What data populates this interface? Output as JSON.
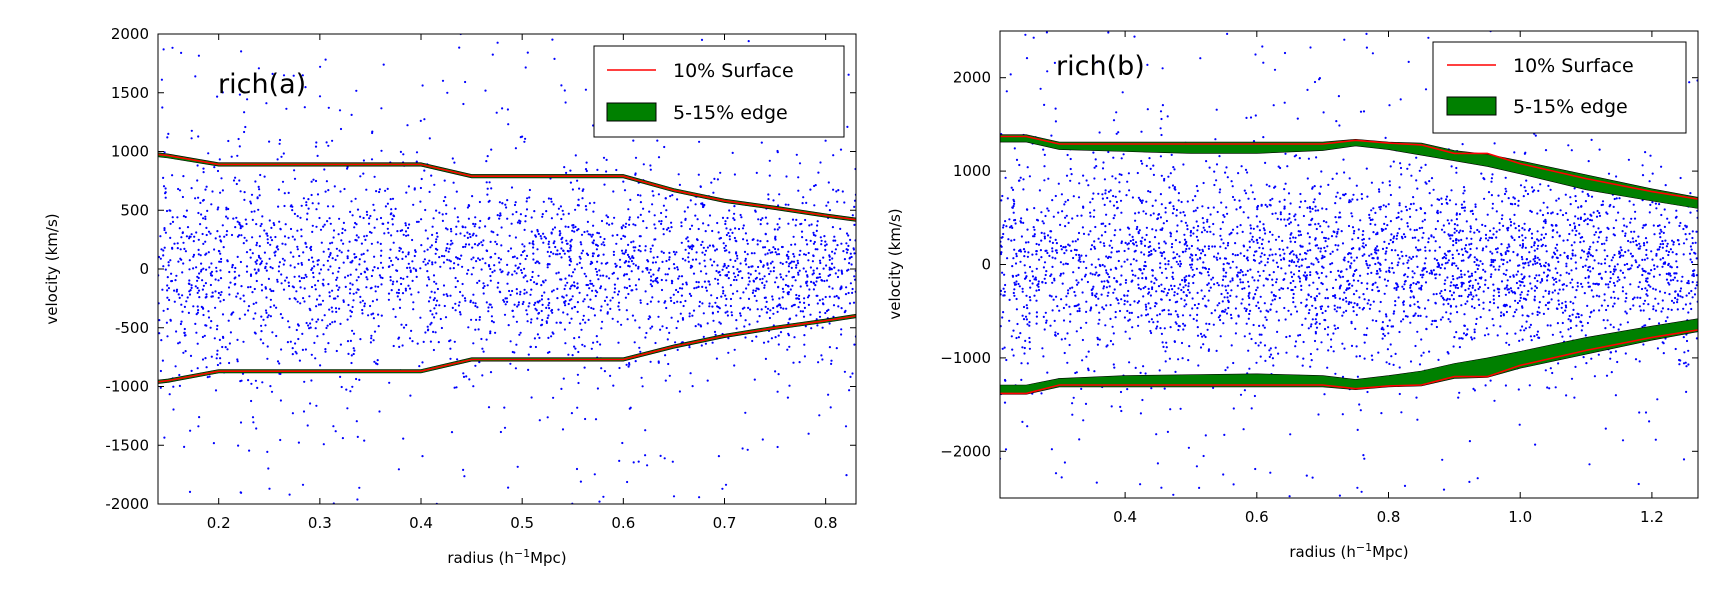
{
  "chart_data": [
    {
      "type": "scatter",
      "panel_label": "rich(a)",
      "xlabel_main": "radius (h",
      "xlabel_sup": "−1",
      "xlabel_tail": "Mpc)",
      "ylabel": "velocity (km/s)",
      "xlim": [
        0.14,
        0.83
      ],
      "ylim": [
        -2000,
        2000
      ],
      "xticks": [
        0.2,
        0.3,
        0.4,
        0.5,
        0.6,
        0.7,
        0.8
      ],
      "xtick_labels": [
        "0.2",
        "0.3",
        "0.4",
        "0.5",
        "0.6",
        "0.7",
        "0.8"
      ],
      "yticks": [
        -2000,
        -1500,
        -1000,
        -500,
        0,
        500,
        1000,
        1500,
        2000
      ],
      "ytick_labels": [
        "-2000",
        "-1500",
        "-1000",
        "-500",
        "0",
        "500",
        "1000",
        "1500",
        "2000"
      ],
      "legend": {
        "placement": "top-right",
        "surface_label": "10% Surface",
        "edge_label": "5-15% edge"
      },
      "colors": {
        "points": "#0000ff",
        "surface": "#ff0000",
        "edge": "#008000"
      },
      "scatter": {
        "count": 3000,
        "core_sigma": 480,
        "outlier_fraction": 0.14,
        "point_note_none": ""
      },
      "surface": {
        "x": [
          0.14,
          0.15,
          0.2,
          0.3,
          0.4,
          0.45,
          0.5,
          0.6,
          0.65,
          0.7,
          0.75,
          0.8,
          0.83
        ],
        "upper": [
          975,
          965,
          890,
          890,
          890,
          790,
          790,
          790,
          670,
          580,
          520,
          455,
          420
        ],
        "lower": [
          -960,
          -950,
          -870,
          -870,
          -870,
          -770,
          -770,
          -770,
          -660,
          -570,
          -500,
          -440,
          -400
        ]
      },
      "edge": {
        "upper_inner": [
          955,
          945,
          875,
          875,
          875,
          775,
          775,
          775,
          655,
          565,
          505,
          440,
          405
        ],
        "upper_outer": [
          990,
          980,
          905,
          905,
          905,
          805,
          805,
          805,
          685,
          595,
          535,
          470,
          435
        ],
        "lower_inner": [
          -945,
          -935,
          -855,
          -855,
          -855,
          -755,
          -755,
          -755,
          -645,
          -555,
          -485,
          -425,
          -385
        ],
        "lower_outer": [
          -975,
          -965,
          -885,
          -885,
          -885,
          -785,
          -785,
          -785,
          -675,
          -585,
          -515,
          -455,
          -415
        ]
      }
    },
    {
      "type": "scatter",
      "panel_label": "rich(b)",
      "xlabel_main": "radius (h",
      "xlabel_sup": "−1",
      "xlabel_tail": "Mpc)",
      "ylabel": "velocity (km/s)",
      "xlim": [
        0.21,
        1.27
      ],
      "ylim": [
        -2500,
        2500
      ],
      "xticks": [
        0.4,
        0.6,
        0.8,
        1.0,
        1.2
      ],
      "xtick_labels": [
        "0.4",
        "0.6",
        "0.8",
        "1.0",
        "1.2"
      ],
      "yticks": [
        -2000,
        -1000,
        0,
        1000,
        2000
      ],
      "ytick_labels": [
        "−2000",
        "−1000",
        "0",
        "1000",
        "2000"
      ],
      "legend": {
        "placement": "top-right",
        "surface_label": "10% Surface",
        "edge_label": "5-15% edge"
      },
      "colors": {
        "points": "#0000ff",
        "surface": "#ff0000",
        "edge": "#008000"
      },
      "scatter": {
        "count": 3600,
        "core_sigma": 620,
        "outlier_fraction": 0.1
      },
      "surface": {
        "x": [
          0.21,
          0.25,
          0.3,
          0.4,
          0.5,
          0.6,
          0.7,
          0.75,
          0.8,
          0.85,
          0.9,
          0.95,
          1.0,
          1.1,
          1.2,
          1.27
        ],
        "upper": [
          1370,
          1370,
          1290,
          1290,
          1290,
          1290,
          1290,
          1330,
          1300,
          1280,
          1190,
          1190,
          1080,
          920,
          780,
          700
        ],
        "lower": [
          -1380,
          -1380,
          -1290,
          -1290,
          -1290,
          -1290,
          -1290,
          -1330,
          -1300,
          -1290,
          -1200,
          -1200,
          -1080,
          -920,
          -780,
          -700
        ]
      },
      "edge": {
        "upper_inner": [
          1310,
          1310,
          1230,
          1210,
          1190,
          1190,
          1220,
          1270,
          1230,
          1170,
          1110,
          1050,
          970,
          800,
          680,
          600
        ],
        "upper_outer": [
          1390,
          1390,
          1310,
          1310,
          1310,
          1310,
          1310,
          1340,
          1310,
          1300,
          1220,
          1180,
          1110,
          960,
          810,
          720
        ],
        "lower_inner": [
          -1290,
          -1290,
          -1220,
          -1190,
          -1180,
          -1170,
          -1190,
          -1230,
          -1190,
          -1140,
          -1060,
          -1000,
          -930,
          -780,
          -660,
          -580
        ],
        "lower_outer": [
          -1390,
          -1390,
          -1310,
          -1310,
          -1310,
          -1310,
          -1310,
          -1340,
          -1310,
          -1300,
          -1220,
          -1210,
          -1110,
          -960,
          -810,
          -720
        ]
      }
    }
  ]
}
